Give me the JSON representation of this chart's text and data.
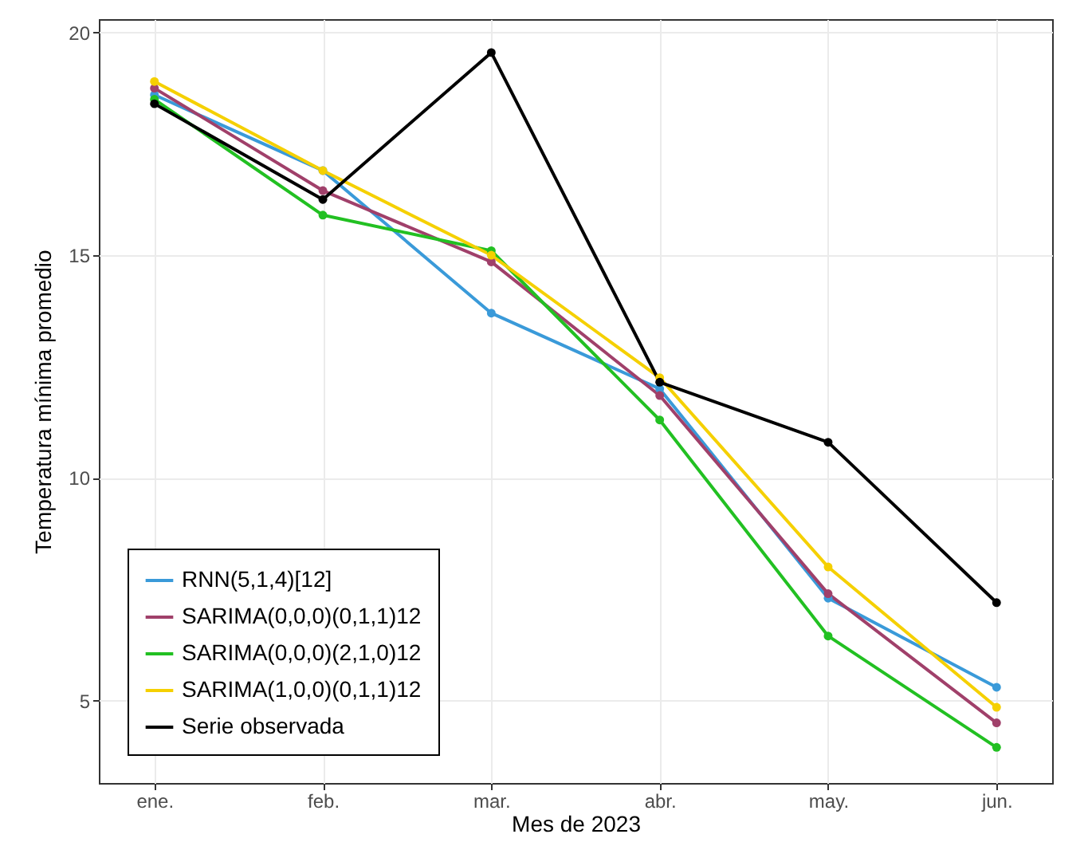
{
  "chart_data": {
    "type": "line",
    "xlabel": "Mes de 2023",
    "ylabel": "Temperatura mínima promedio",
    "categories": [
      "ene.",
      "feb.",
      "mar.",
      "abr.",
      "may.",
      "jun."
    ],
    "series": [
      {
        "name": "RNN(5,1,4)[12]",
        "color": "#3a9ad9",
        "values": [
          18.6,
          16.9,
          13.7,
          12.0,
          7.3,
          5.3
        ]
      },
      {
        "name": "SARIMA(0,0,0)(0,1,1)12",
        "color": "#a0406a",
        "values": [
          18.75,
          16.45,
          14.85,
          11.85,
          7.4,
          4.5
        ]
      },
      {
        "name": "SARIMA(0,0,0)(2,1,0)12",
        "color": "#22c022",
        "values": [
          18.5,
          15.9,
          15.1,
          11.3,
          6.45,
          3.95
        ]
      },
      {
        "name": "SARIMA(1,0,0)(0,1,1)12",
        "color": "#f5d000",
        "values": [
          18.9,
          16.9,
          15.0,
          12.25,
          8.0,
          4.85
        ]
      },
      {
        "name": "Serie observada",
        "color": "#000000",
        "values": [
          18.4,
          16.25,
          19.55,
          12.15,
          10.8,
          7.2
        ]
      }
    ],
    "ylim": [
      3.15,
      20.3
    ],
    "yticks": [
      5,
      10,
      15,
      20
    ],
    "grid": true,
    "legend": "bottom left",
    "marker": "circle",
    "line_style": "solid"
  }
}
